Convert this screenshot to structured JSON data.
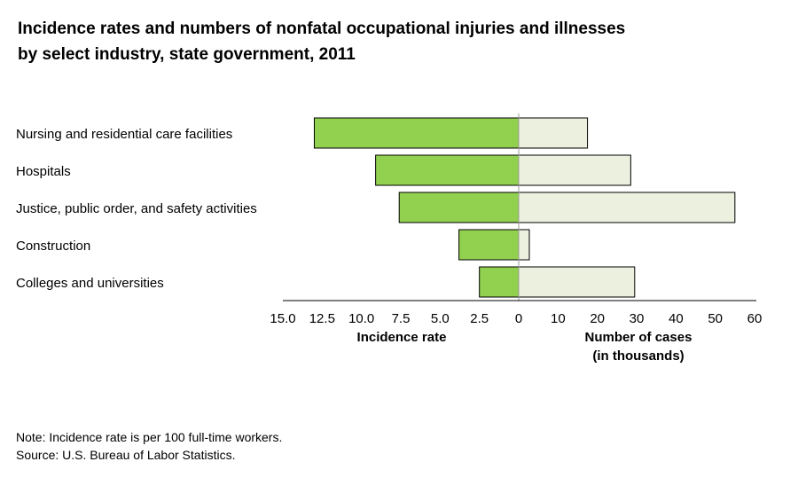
{
  "title_lines": [
    "Incidence rates and numbers of nonfatal occupational injuries and illnesses",
    "by select industry, state government, 2011"
  ],
  "chart_data": {
    "type": "bar",
    "orientation": "horizontal",
    "layout": "back-to-back",
    "title": "Incidence rates and numbers of nonfatal occupational injuries and illnesses by select industry, state government, 2011",
    "categories": [
      "Nursing and residential care facilities",
      "Hospitals",
      "Justice, public order, and safety activities",
      "Construction",
      "Colleges and universities"
    ],
    "series": [
      {
        "values": [
          13.0,
          9.1,
          7.6,
          3.8,
          2.5
        ],
        "side": "left",
        "xlabel": "Incidence rate",
        "xlim": [
          0,
          15.0
        ],
        "ticks": [
          "15.0",
          "12.5",
          "10.0",
          "7.5",
          "5.0",
          "2.5",
          "0"
        ],
        "color": "#92d050"
      },
      {
        "values": [
          17.5,
          28.5,
          55.0,
          2.7,
          29.5
        ],
        "side": "right",
        "xlabel_lines": [
          "Number of cases",
          "(in thousands)"
        ],
        "xlim": [
          0,
          60
        ],
        "ticks": [
          "10",
          "20",
          "30",
          "40",
          "50",
          "60"
        ],
        "color": "#ebf1de"
      }
    ],
    "grid": false,
    "legend": "none"
  },
  "notes": [
    "Note: Incidence rate is per 100 full-time workers.",
    "Source: U.S. Bureau of Labor Statistics."
  ]
}
